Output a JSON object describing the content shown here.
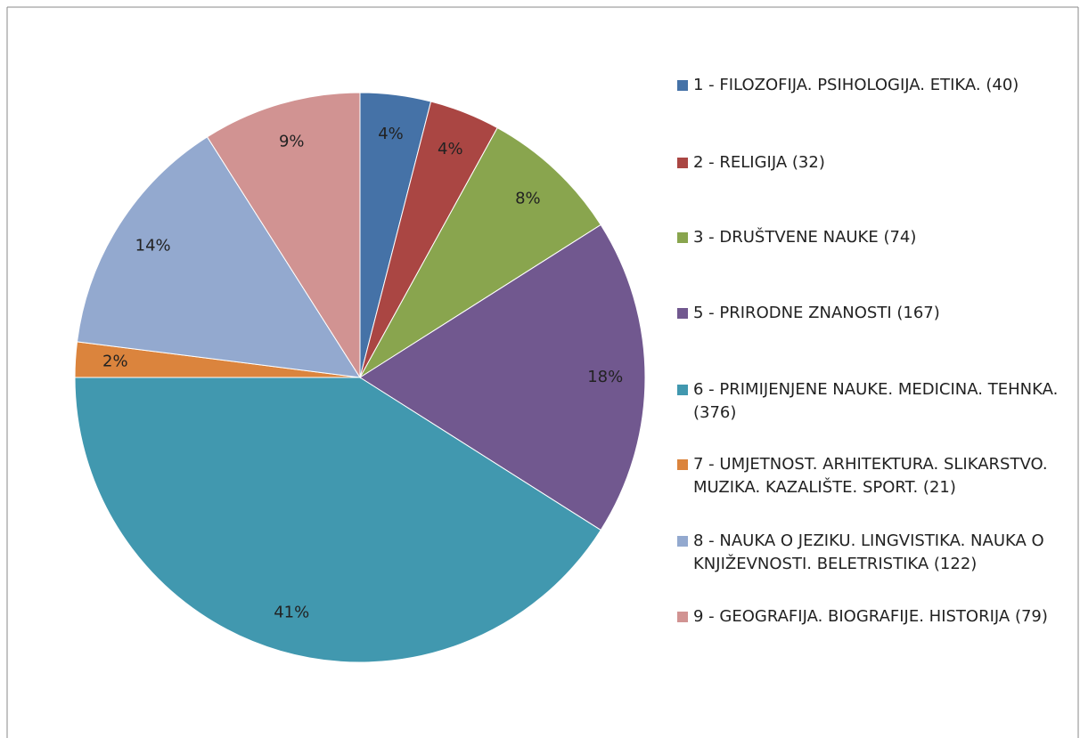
{
  "chart_data": {
    "type": "pie",
    "categories": [
      "1 - FILOZOFIJA. PSIHOLOGIJA. ETIKA. (40)",
      "2 - RELIGIJA (32)",
      "3 - DRUŠTVENE NAUKE (74)",
      "5 - PRIRODNE ZNANOSTI (167)",
      "6 - PRIMIJENJENE NAUKE. MEDICINA. TEHNKA. (376)",
      "7 - UMJETNOST. ARHITEKTURA. SLIKARSTVO. MUZIKA. KAZALIŠTE. SPORT. (21)",
      "8 - NAUKA O JEZIKU. LINGVISTIKA. NAUKA O KNJIŽEVNOSTI. BELETRISTIKA (122)",
      "9 - GEOGRAFIJA. BIOGRAFIJE. HISTORIJA (79)"
    ],
    "values": [
      4,
      4,
      8,
      18,
      41,
      2,
      14,
      9
    ],
    "value_labels": [
      "4%",
      "4%",
      "8%",
      "18%",
      "41%",
      "2%",
      "14%",
      "9%"
    ],
    "colors": [
      "#4572a7",
      "#aa4643",
      "#89a54e",
      "#71588f",
      "#4198af",
      "#db843d",
      "#93a9cf",
      "#d19392"
    ],
    "legend": "right"
  }
}
